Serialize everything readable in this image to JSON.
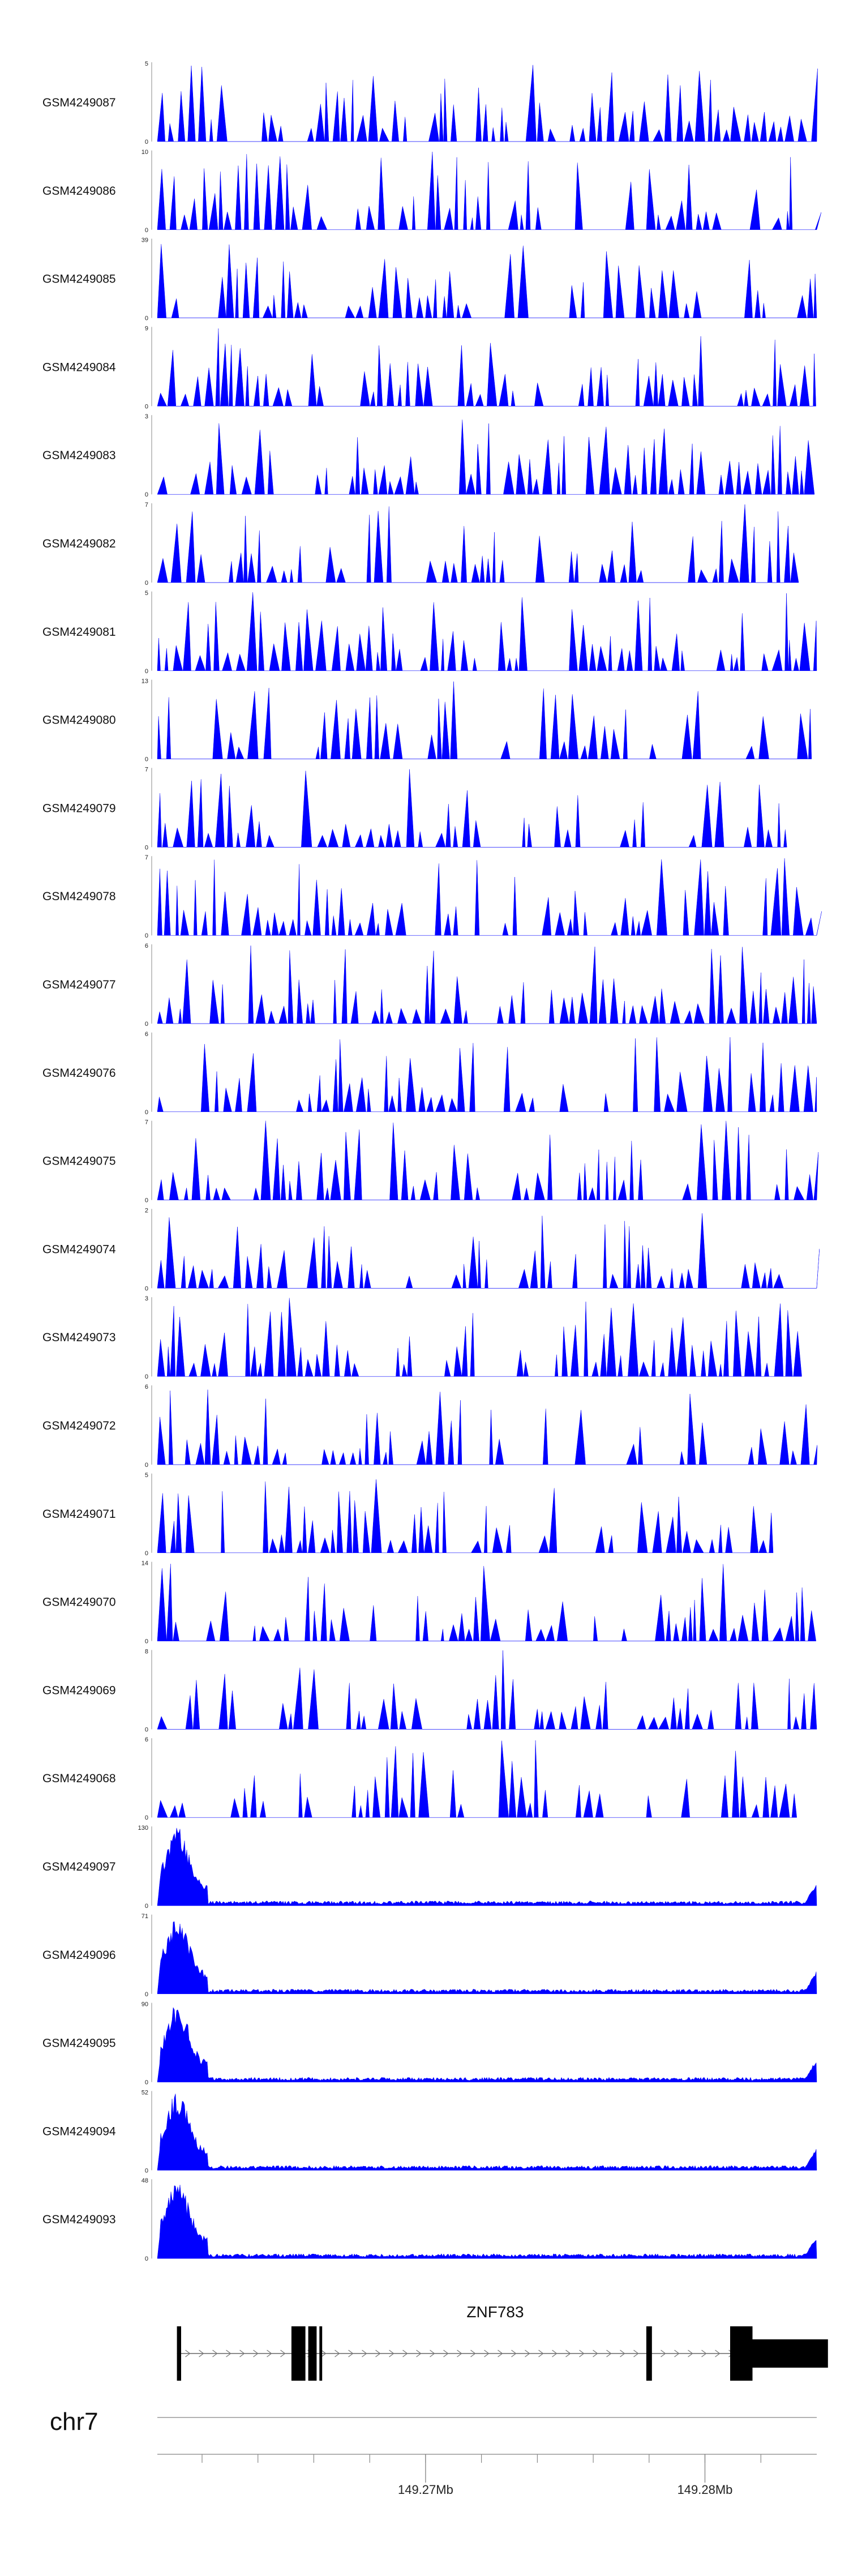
{
  "chart_data": {
    "type": "area",
    "fill_color": "#0000ff",
    "tracks": [
      {
        "name": "GSM4249087",
        "max": 5,
        "min": 0,
        "style": "sparse"
      },
      {
        "name": "GSM4249086",
        "max": 10,
        "min": 0,
        "style": "sparse"
      },
      {
        "name": "GSM4249085",
        "max": 39,
        "min": 0,
        "style": "sparse"
      },
      {
        "name": "GSM4249084",
        "max": 9,
        "min": 0,
        "style": "sparse"
      },
      {
        "name": "GSM4249083",
        "max": 3,
        "min": 0,
        "style": "sparse"
      },
      {
        "name": "GSM4249082",
        "max": 7,
        "min": 0,
        "style": "sparse"
      },
      {
        "name": "GSM4249081",
        "max": 5,
        "min": 0,
        "style": "sparse"
      },
      {
        "name": "GSM4249080",
        "max": 13,
        "min": 0,
        "style": "sparse"
      },
      {
        "name": "GSM4249079",
        "max": 7,
        "min": 0,
        "style": "sparse"
      },
      {
        "name": "GSM4249078",
        "max": 7,
        "min": 0,
        "style": "sparse"
      },
      {
        "name": "GSM4249077",
        "max": 6,
        "min": 0,
        "style": "sparse"
      },
      {
        "name": "GSM4249076",
        "max": 6,
        "min": 0,
        "style": "sparse"
      },
      {
        "name": "GSM4249075",
        "max": 7,
        "min": 0,
        "style": "sparse"
      },
      {
        "name": "GSM4249074",
        "max": 2,
        "min": 0,
        "style": "sparse"
      },
      {
        "name": "GSM4249073",
        "max": 3,
        "min": 0,
        "style": "sparse"
      },
      {
        "name": "GSM4249072",
        "max": 6,
        "min": 0,
        "style": "sparse"
      },
      {
        "name": "GSM4249071",
        "max": 5,
        "min": 0,
        "style": "sparse"
      },
      {
        "name": "GSM4249070",
        "max": 14,
        "min": 0,
        "style": "sparse"
      },
      {
        "name": "GSM4249069",
        "max": 8,
        "min": 0,
        "style": "sparse"
      },
      {
        "name": "GSM4249068",
        "max": 6,
        "min": 0,
        "style": "sparse"
      },
      {
        "name": "GSM4249097",
        "max": 130,
        "min": 0,
        "style": "dense"
      },
      {
        "name": "GSM4249096",
        "max": 71,
        "min": 0,
        "style": "dense"
      },
      {
        "name": "GSM4249095",
        "max": 90,
        "min": 0,
        "style": "dense"
      },
      {
        "name": "GSM4249094",
        "max": 52,
        "min": 0,
        "style": "dense"
      },
      {
        "name": "GSM4249093",
        "max": 48,
        "min": 0,
        "style": "dense"
      }
    ],
    "gene": {
      "name": "ZNF783",
      "exon_starts_mb": [
        149.2611,
        149.2652,
        149.2658,
        149.2662,
        149.2779,
        149.2809,
        149.2817
      ],
      "exon_ends_mb": [
        149.26125,
        149.2657,
        149.2661,
        149.2663,
        149.2781,
        149.2817,
        149.2844
      ],
      "thick_from_mb": 149.2809,
      "strand": "+"
    },
    "axis": {
      "chromosome": "chr7",
      "range_mb": [
        149.2604,
        149.284
      ],
      "tick_labels": [
        "149.27Mb",
        "149.28Mb"
      ],
      "tick_label_values": [
        149.27,
        149.28
      ]
    }
  }
}
